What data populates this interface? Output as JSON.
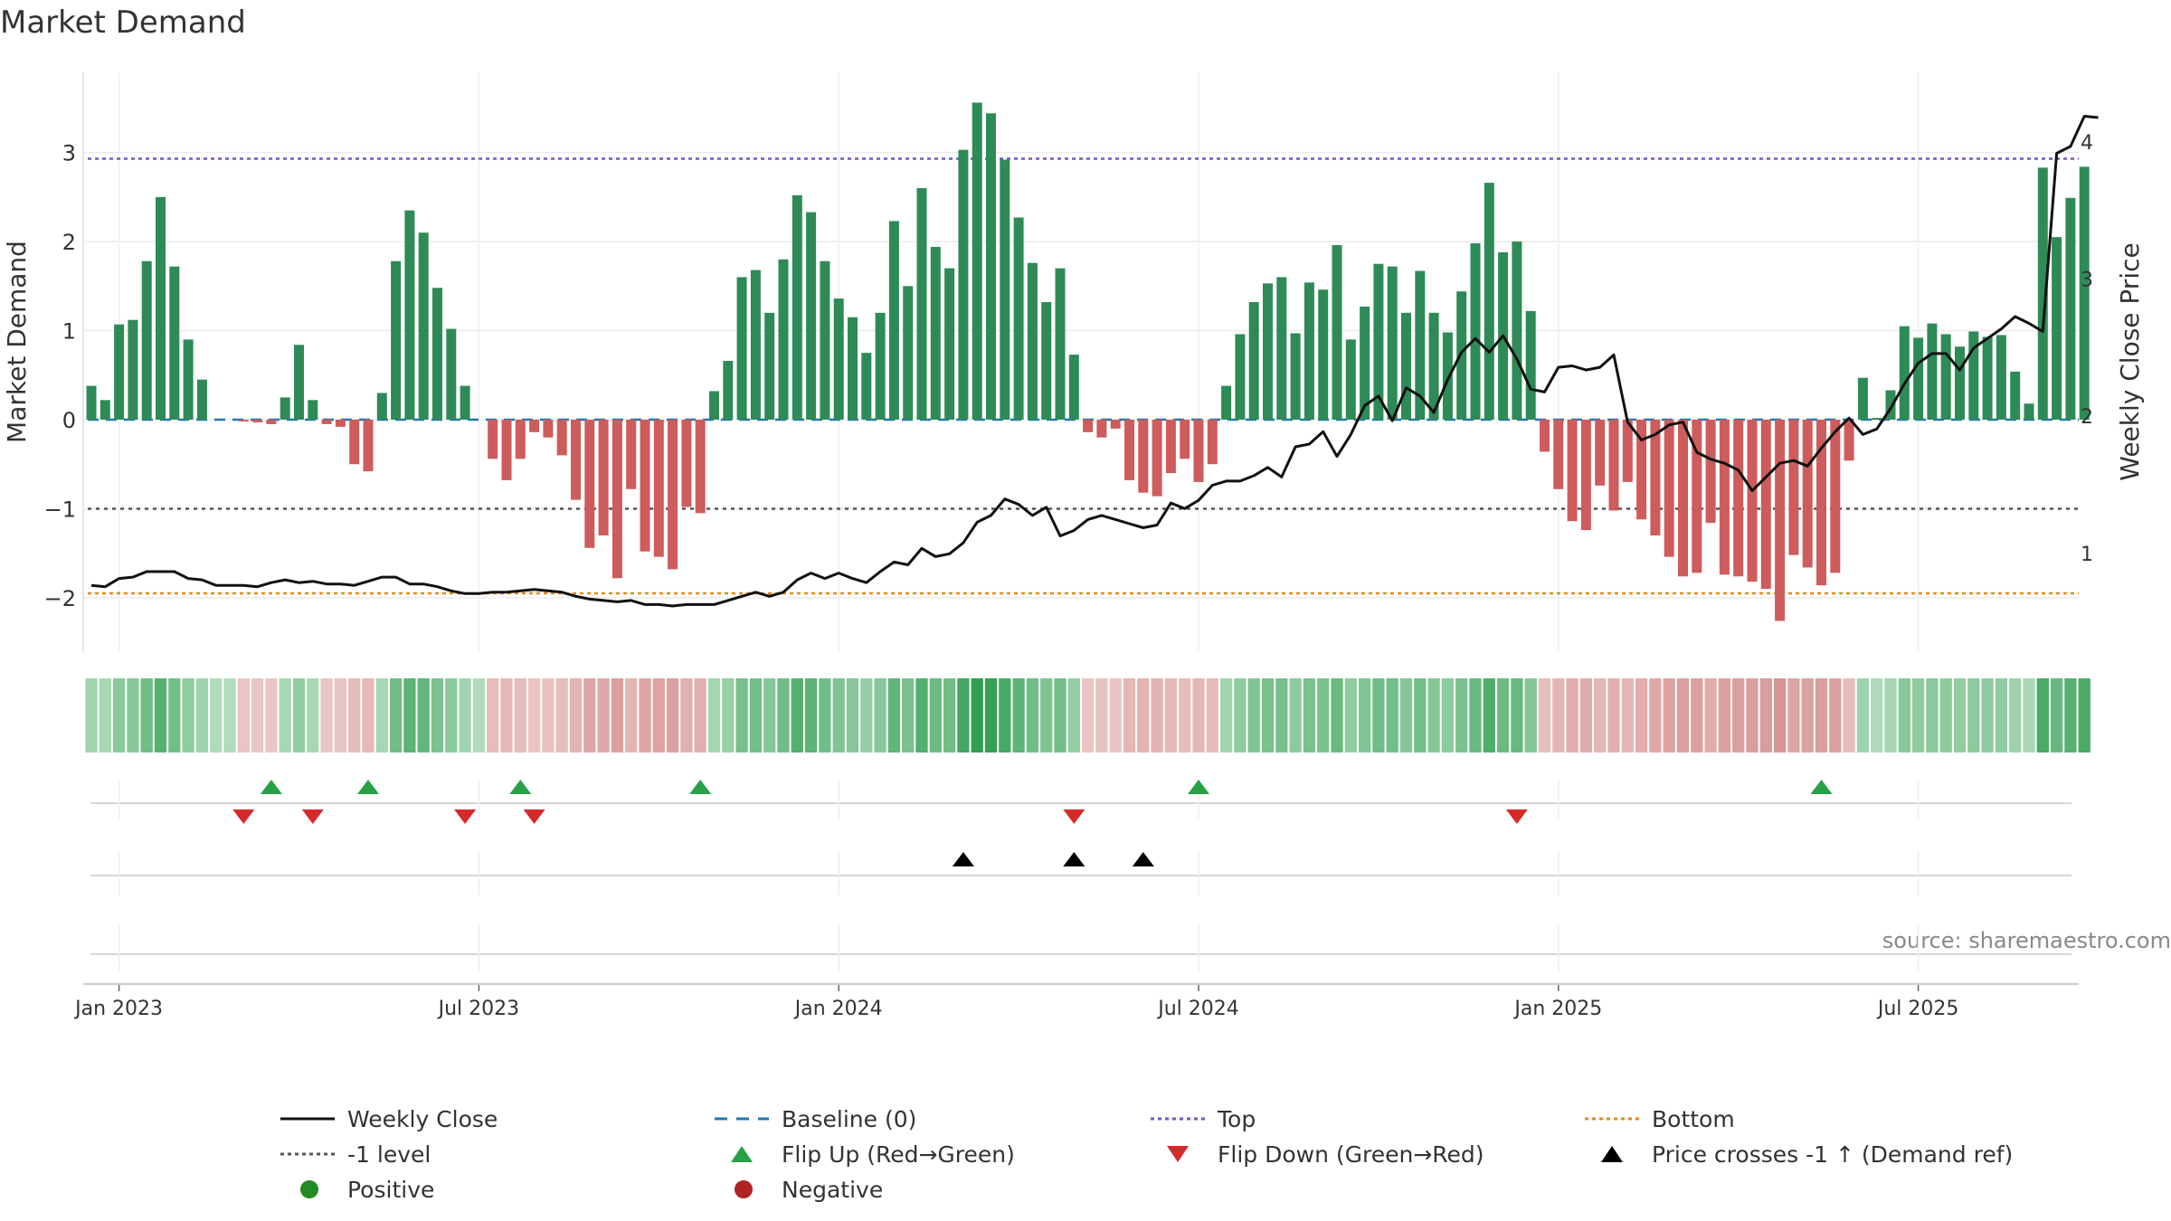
{
  "chart_data": {
    "type": "bar",
    "title": "Market Demand",
    "ylabel": "Market Demand",
    "y2label": "Weekly Close Price",
    "source": "source: sharemaestro.com",
    "ylim": [
      -2.6,
      3.9
    ],
    "y2lim": [
      0.28,
      4.5
    ],
    "yticks": [
      {
        "v": 3,
        "label": "3"
      },
      {
        "v": 2,
        "label": "2"
      },
      {
        "v": 1,
        "label": "1"
      },
      {
        "v": 0,
        "label": "0"
      },
      {
        "v": -1,
        "label": "−1"
      },
      {
        "v": -2,
        "label": "−2"
      }
    ],
    "y2ticks": [
      {
        "v": 4,
        "label": "4"
      },
      {
        "v": 3,
        "label": "3"
      },
      {
        "v": 2,
        "label": "2"
      },
      {
        "v": 1,
        "label": "1"
      }
    ],
    "xticks": [
      {
        "i": 2,
        "label": "Jan 2023"
      },
      {
        "i": 28,
        "label": "Jul 2023"
      },
      {
        "i": 54,
        "label": "Jan 2024"
      },
      {
        "i": 80,
        "label": "Jul 2024"
      },
      {
        "i": 106,
        "label": "Jan 2025"
      },
      {
        "i": 132,
        "label": "Jul 2025"
      }
    ],
    "reference_lines": {
      "baseline": 0,
      "minus_one": -1,
      "top": 2.93,
      "bottom": -1.95
    },
    "demand": [
      0.38,
      0.22,
      1.07,
      1.12,
      1.78,
      2.5,
      1.72,
      0.9,
      0.45,
      0,
      0,
      -0.02,
      -0.03,
      -0.05,
      0.25,
      0.84,
      0.22,
      -0.05,
      -0.08,
      -0.5,
      -0.58,
      0.3,
      1.78,
      2.35,
      2.1,
      1.48,
      1.02,
      0.38,
      0,
      -0.44,
      -0.68,
      -0.44,
      -0.14,
      -0.2,
      -0.4,
      -0.9,
      -1.44,
      -1.3,
      -1.78,
      -0.78,
      -1.48,
      -1.54,
      -1.68,
      -0.98,
      -1.05,
      0.32,
      0.66,
      1.6,
      1.68,
      1.2,
      1.8,
      2.52,
      2.33,
      1.78,
      1.36,
      1.15,
      0.75,
      1.2,
      2.23,
      1.5,
      2.6,
      1.94,
      1.7,
      3.03,
      3.56,
      3.44,
      2.92,
      2.27,
      1.76,
      1.32,
      1.7,
      0.73,
      -0.14,
      -0.2,
      -0.1,
      -0.68,
      -0.82,
      -0.86,
      -0.6,
      -0.44,
      -0.7,
      -0.5,
      0.38,
      0.96,
      1.32,
      1.53,
      1.6,
      0.97,
      1.54,
      1.46,
      1.96,
      0.9,
      1.27,
      1.75,
      1.72,
      1.2,
      1.67,
      1.2,
      0.98,
      1.44,
      1.98,
      2.66,
      1.88,
      2.0,
      1.22,
      -0.36,
      -0.78,
      -1.14,
      -1.24,
      -0.74,
      -1.02,
      -0.7,
      -1.12,
      -1.3,
      -1.54,
      -1.76,
      -1.72,
      -1.16,
      -1.74,
      -1.76,
      -1.82,
      -1.9,
      -2.26,
      -1.52,
      -1.66,
      -1.86,
      -1.72,
      -0.46,
      0.47,
      0.02,
      0.33,
      1.05,
      0.92,
      1.08,
      0.96,
      0.82,
      0.99,
      0.93,
      0.95,
      0.54,
      0.18,
      2.83,
      2.05,
      2.49,
      2.84
    ],
    "close": [
      0.76,
      0.75,
      0.81,
      0.82,
      0.86,
      0.86,
      0.86,
      0.81,
      0.8,
      0.76,
      0.76,
      0.76,
      0.75,
      0.78,
      0.8,
      0.78,
      0.79,
      0.77,
      0.77,
      0.76,
      0.79,
      0.82,
      0.82,
      0.77,
      0.77,
      0.75,
      0.72,
      0.7,
      0.7,
      0.71,
      0.71,
      0.72,
      0.73,
      0.72,
      0.71,
      0.68,
      0.66,
      0.65,
      0.64,
      0.65,
      0.62,
      0.62,
      0.61,
      0.62,
      0.62,
      0.62,
      0.65,
      0.68,
      0.71,
      0.68,
      0.71,
      0.8,
      0.85,
      0.81,
      0.85,
      0.81,
      0.78,
      0.86,
      0.93,
      0.91,
      1.03,
      0.97,
      0.99,
      1.07,
      1.22,
      1.27,
      1.39,
      1.35,
      1.27,
      1.33,
      1.12,
      1.16,
      1.24,
      1.27,
      1.24,
      1.21,
      1.18,
      1.2,
      1.36,
      1.32,
      1.38,
      1.49,
      1.52,
      1.52,
      1.56,
      1.62,
      1.55,
      1.77,
      1.79,
      1.88,
      1.7,
      1.86,
      2.07,
      2.14,
      1.96,
      2.2,
      2.14,
      2.02,
      2.26,
      2.46,
      2.56,
      2.46,
      2.58,
      2.41,
      2.19,
      2.17,
      2.35,
      2.36,
      2.33,
      2.35,
      2.44,
      1.95,
      1.82,
      1.86,
      1.93,
      1.95,
      1.73,
      1.68,
      1.65,
      1.6,
      1.45,
      1.55,
      1.65,
      1.67,
      1.63,
      1.76,
      1.88,
      1.98,
      1.86,
      1.9,
      2.05,
      2.23,
      2.38,
      2.45,
      2.45,
      2.33,
      2.49,
      2.56,
      2.63,
      2.72,
      2.67,
      2.61,
      3.91,
      3.96,
      4.18,
      4.17
    ],
    "flip_up_index": [
      13,
      20,
      31,
      44,
      80,
      125
    ],
    "flip_down_index": [
      11,
      16,
      27,
      32,
      71,
      103
    ],
    "price_cross_index": [
      63,
      71,
      76
    ],
    "legend": [
      {
        "label": "Weekly Close",
        "symbol": "solid-line",
        "color": "#111111"
      },
      {
        "label": "Baseline (0)",
        "symbol": "dashed-line",
        "color": "#1f77b4"
      },
      {
        "label": "Top",
        "symbol": "dotted-line",
        "color": "#6a5acd"
      },
      {
        "label": "Bottom",
        "symbol": "dotted-line",
        "color": "#e08a1e"
      },
      {
        "label": "-1 level",
        "symbol": "dotted-line",
        "color": "#555555"
      },
      {
        "label": "Flip Up (Red→Green)",
        "symbol": "triangle-up",
        "color": "#27a046"
      },
      {
        "label": "Flip Down (Green→Red)",
        "symbol": "triangle-down",
        "color": "#d62a2a"
      },
      {
        "label": "Price crosses -1 ↑ (Demand ref)",
        "symbol": "triangle-up",
        "color": "#000000"
      },
      {
        "label": "Positive",
        "symbol": "circle",
        "color": "#228b22"
      },
      {
        "label": "Negative",
        "symbol": "circle",
        "color": "#b22222"
      }
    ],
    "colors": {
      "positive": "#2e8b57",
      "negative": "#cd5c5c",
      "line": "#111111",
      "grid": "#e6e6e6"
    }
  }
}
